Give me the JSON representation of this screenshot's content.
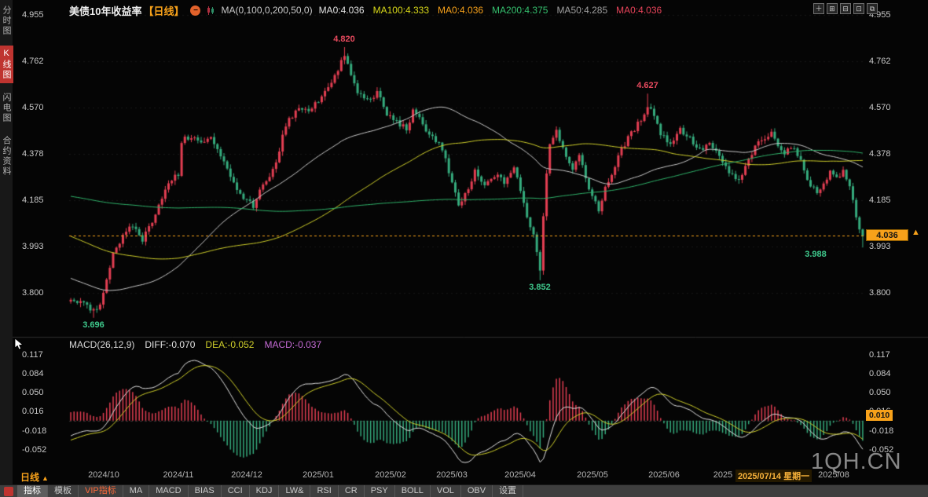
{
  "top_bar": {
    "title": "美债10年收益率",
    "period_tag": "【日线】",
    "collapse_glyph": "−",
    "ma_settings": "MA(0,100,0,200,50,0)",
    "ma_values": [
      {
        "label": "MA0:4.036",
        "color": "#e2e2e2"
      },
      {
        "label": "MA100:4.333",
        "color": "#d9d919"
      },
      {
        "label": "MA0:4.036",
        "color": "#f7a11a"
      },
      {
        "label": "MA200:4.375",
        "color": "#35c06e"
      },
      {
        "label": "MA50:4.285",
        "color": "#9f9f9f"
      },
      {
        "label": "MA0:4.036",
        "color": "#e8445a"
      }
    ],
    "window_controls": [
      {
        "glyph": "＋",
        "name": "add-chart-icon"
      },
      {
        "glyph": "⊞",
        "name": "tile-grid-icon"
      },
      {
        "glyph": "⊟",
        "name": "tile-horizontal-icon"
      },
      {
        "glyph": "⊡",
        "name": "single-view-icon"
      },
      {
        "glyph": "⧉",
        "name": "multi-view-icon"
      }
    ]
  },
  "left_sidebar": {
    "items": [
      {
        "label": "分时图",
        "active": false
      },
      {
        "label": "K线图",
        "active": true
      },
      {
        "label": "闪电图",
        "active": false
      },
      {
        "label": "合约资料",
        "active": false
      }
    ]
  },
  "chart_data": {
    "type": "candlestick",
    "title": "美债10年收益率 日线",
    "up_color": "#e33e52",
    "down_color": "#35ab7d",
    "price_line_color": "#f7a11a",
    "scale_arrow": "▲",
    "current_price": "4.036",
    "current_price_value": 4.036,
    "y_ticks_main": [
      "4.955",
      "4.762",
      "4.570",
      "4.378",
      "4.185",
      "3.993",
      "3.800"
    ],
    "y_tick_values_main": [
      4.955,
      4.762,
      4.57,
      4.378,
      4.185,
      3.993,
      3.8
    ],
    "y_axis_range_main": [
      3.63,
      4.97
    ],
    "x_labels": [
      {
        "text": "2024/10",
        "day": 10
      },
      {
        "text": "2024/11",
        "day": 33
      },
      {
        "text": "2024/12",
        "day": 54
      },
      {
        "text": "2025/01",
        "day": 76
      },
      {
        "text": "2025/02",
        "day": 98
      },
      {
        "text": "2025/03",
        "day": 117
      },
      {
        "text": "2025/04",
        "day": 138
      },
      {
        "text": "2025/05",
        "day": 160
      },
      {
        "text": "2025/06",
        "day": 182
      },
      {
        "text": "2025",
        "day": 200
      },
      {
        "text": "2025/08",
        "day": 234
      }
    ],
    "annotations": [
      {
        "day": 7,
        "type": "low",
        "label": "3.696",
        "value": 3.696
      },
      {
        "day": 84,
        "type": "high",
        "label": "4.820",
        "value": 4.82
      },
      {
        "day": 144,
        "type": "low",
        "label": "3.852",
        "value": 3.852
      },
      {
        "day": 177,
        "type": "high",
        "label": "4.627",
        "value": 4.627
      },
      {
        "day": 243,
        "type": "low",
        "label": "3.988",
        "value": 3.988,
        "dx": -60
      }
    ],
    "ma_lines": [
      {
        "period": 50,
        "color": "#c8c8c8"
      },
      {
        "period": 100,
        "color": "#cfcf2a"
      },
      {
        "period": 200,
        "color": "#2fb36a"
      }
    ],
    "candles": {
      "count": 244,
      "noise": 0.012,
      "prehistory": [
        [
          -200,
          4.2
        ],
        [
          -170,
          4.35
        ],
        [
          -140,
          4.46
        ],
        [
          -110,
          4.38
        ],
        [
          -90,
          4.3
        ],
        [
          -70,
          4.2
        ],
        [
          -55,
          4.08
        ],
        [
          -40,
          3.96
        ],
        [
          -25,
          3.86
        ],
        [
          -12,
          3.77
        ],
        [
          -5,
          3.71
        ],
        [
          -1,
          3.76
        ]
      ],
      "keypoints": [
        [
          0,
          3.78
        ],
        [
          3,
          3.76
        ],
        [
          6,
          3.73
        ],
        [
          8,
          3.72
        ],
        [
          10,
          3.8
        ],
        [
          13,
          3.97
        ],
        [
          16,
          4.03
        ],
        [
          19,
          4.08
        ],
        [
          22,
          4.02
        ],
        [
          25,
          4.1
        ],
        [
          28,
          4.2
        ],
        [
          31,
          4.27
        ],
        [
          33,
          4.29
        ],
        [
          34,
          4.43
        ],
        [
          37,
          4.45
        ],
        [
          40,
          4.42
        ],
        [
          43,
          4.44
        ],
        [
          45,
          4.4
        ],
        [
          48,
          4.32
        ],
        [
          51,
          4.22
        ],
        [
          54,
          4.19
        ],
        [
          56,
          4.15
        ],
        [
          58,
          4.22
        ],
        [
          61,
          4.28
        ],
        [
          63,
          4.33
        ],
        [
          65,
          4.45
        ],
        [
          67,
          4.52
        ],
        [
          70,
          4.57
        ],
        [
          73,
          4.55
        ],
        [
          76,
          4.6
        ],
        [
          79,
          4.66
        ],
        [
          82,
          4.72
        ],
        [
          84,
          4.79
        ],
        [
          86,
          4.7
        ],
        [
          88,
          4.63
        ],
        [
          91,
          4.6
        ],
        [
          94,
          4.63
        ],
        [
          97,
          4.54
        ],
        [
          100,
          4.51
        ],
        [
          103,
          4.48
        ],
        [
          105,
          4.55
        ],
        [
          107,
          4.52
        ],
        [
          110,
          4.46
        ],
        [
          113,
          4.42
        ],
        [
          115,
          4.35
        ],
        [
          117,
          4.25
        ],
        [
          119,
          4.16
        ],
        [
          122,
          4.23
        ],
        [
          124,
          4.3
        ],
        [
          127,
          4.24
        ],
        [
          130,
          4.29
        ],
        [
          133,
          4.26
        ],
        [
          136,
          4.32
        ],
        [
          138,
          4.22
        ],
        [
          140,
          4.12
        ],
        [
          142,
          4.04
        ],
        [
          144,
          3.9
        ],
        [
          145,
          4.12
        ],
        [
          146,
          4.3
        ],
        [
          147,
          4.42
        ],
        [
          149,
          4.48
        ],
        [
          151,
          4.4
        ],
        [
          154,
          4.32
        ],
        [
          156,
          4.36
        ],
        [
          158,
          4.28
        ],
        [
          160,
          4.2
        ],
        [
          162,
          4.14
        ],
        [
          164,
          4.24
        ],
        [
          167,
          4.32
        ],
        [
          169,
          4.4
        ],
        [
          172,
          4.46
        ],
        [
          175,
          4.52
        ],
        [
          177,
          4.58
        ],
        [
          179,
          4.54
        ],
        [
          181,
          4.46
        ],
        [
          184,
          4.42
        ],
        [
          187,
          4.48
        ],
        [
          190,
          4.44
        ],
        [
          193,
          4.39
        ],
        [
          196,
          4.42
        ],
        [
          199,
          4.36
        ],
        [
          202,
          4.3
        ],
        [
          205,
          4.26
        ],
        [
          207,
          4.32
        ],
        [
          209,
          4.38
        ],
        [
          211,
          4.42
        ],
        [
          213,
          4.44
        ],
        [
          215,
          4.46
        ],
        [
          217,
          4.42
        ],
        [
          219,
          4.38
        ],
        [
          221,
          4.41
        ],
        [
          223,
          4.37
        ],
        [
          225,
          4.31
        ],
        [
          227,
          4.25
        ],
        [
          229,
          4.21
        ],
        [
          231,
          4.26
        ],
        [
          233,
          4.3
        ],
        [
          235,
          4.28
        ],
        [
          237,
          4.3
        ],
        [
          239,
          4.24
        ],
        [
          240,
          4.18
        ],
        [
          241,
          4.12
        ],
        [
          242,
          4.07
        ],
        [
          243,
          4.036
        ]
      ]
    },
    "macd": {
      "legend": {
        "name": "MACD(26,12,9)",
        "diff": "DIFF:-0.070",
        "dea": "DEA:-0.052",
        "macd": "MACD:-0.037"
      },
      "params": {
        "fast": 12,
        "slow": 26,
        "signal": 9
      },
      "diff_color": "#e0e0e0",
      "dea_color": "#cfcf2a",
      "y_ticks": [
        "0.117",
        "0.084",
        "0.050",
        "0.016",
        "-0.018",
        "-0.052"
      ],
      "y_tick_values": [
        0.117,
        0.084,
        0.05,
        0.016,
        -0.018,
        -0.052
      ],
      "axis_range": [
        -0.0785,
        0.1268
      ],
      "right_marker": {
        "label": "0.010",
        "value": 0.01
      }
    }
  },
  "bottom": {
    "period_selector": {
      "label": "日线",
      "arrow": "▲"
    },
    "date_label": "2025/07/14 星期一",
    "tabs": [
      {
        "label": "指标",
        "active": true
      },
      {
        "label": "模板"
      },
      {
        "label": "VIP指标",
        "vip": true
      },
      {
        "label": "MA"
      },
      {
        "label": "MACD"
      },
      {
        "label": "BIAS"
      },
      {
        "label": "CCI"
      },
      {
        "label": "KDJ"
      },
      {
        "label": "LW&"
      },
      {
        "label": "RSI"
      },
      {
        "label": "CR"
      },
      {
        "label": "PSY"
      },
      {
        "label": "BOLL"
      },
      {
        "label": "VOL"
      },
      {
        "label": "OBV"
      },
      {
        "label": "设置"
      }
    ]
  },
  "watermark": "1QH.CN"
}
